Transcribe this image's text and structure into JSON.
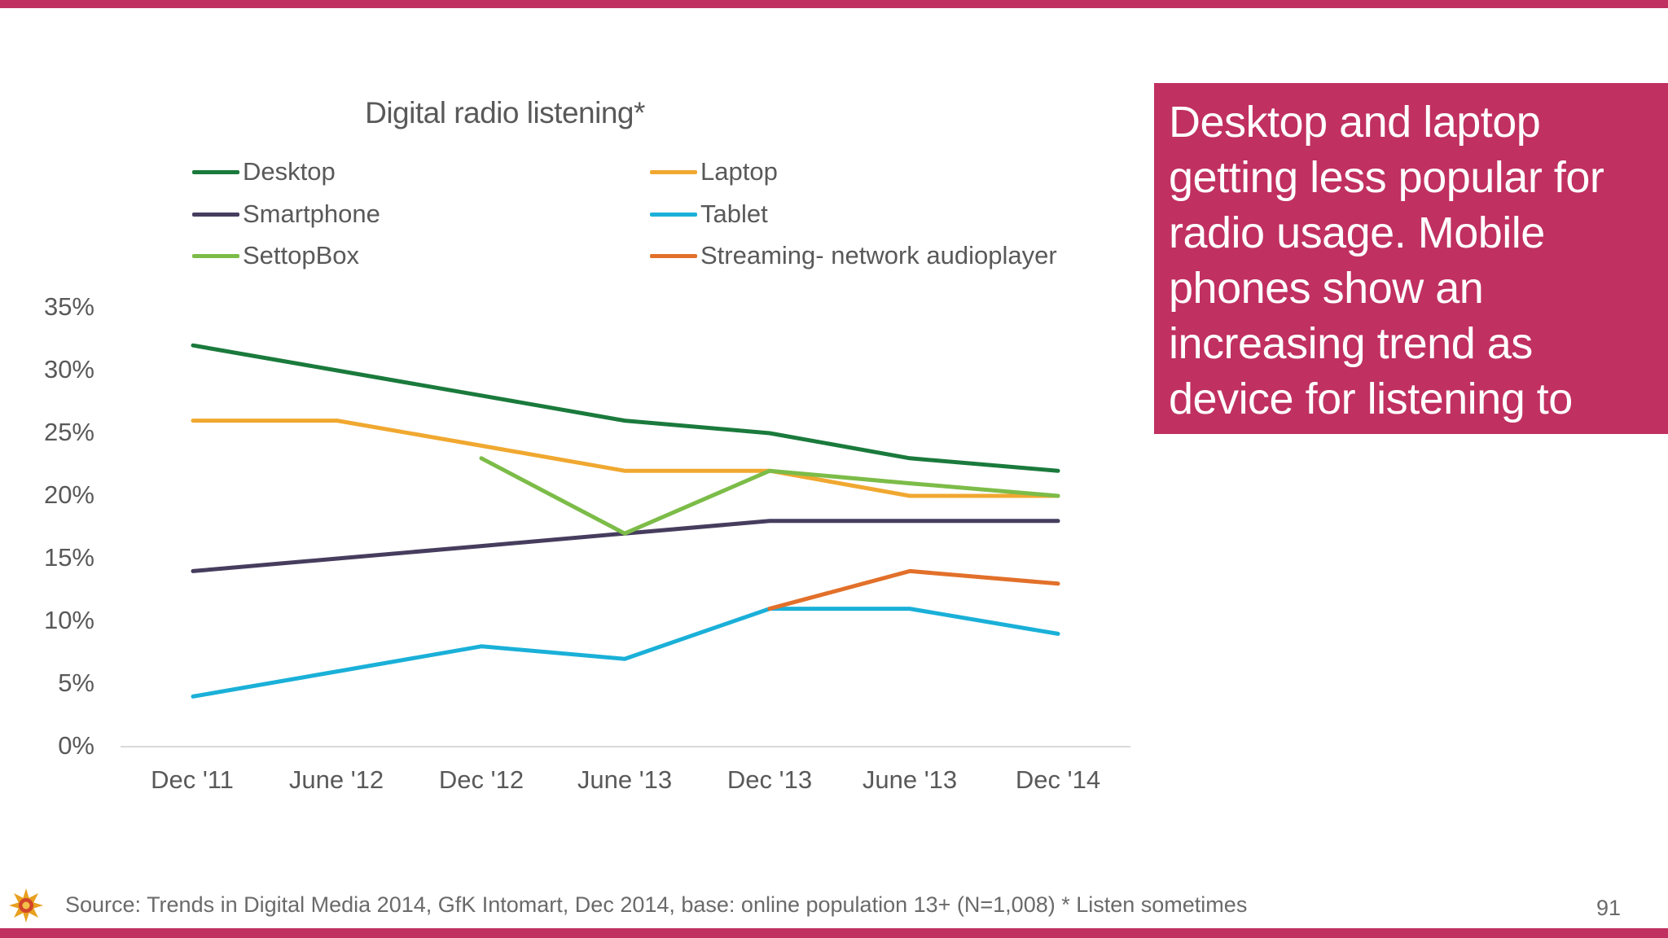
{
  "slide": {
    "callout_text": "Desktop and laptop getting less popular for radio usage. Mobile phones show an increasing trend as device for listening to digital radio",
    "source": "Source: Trends in Digital Media 2014, GfK Intomart, Dec 2014, base: online population 13+ (N=1,008) * Listen sometimes",
    "page_number": "91",
    "accent_color": "#c03060"
  },
  "chart_data": {
    "type": "line",
    "title": "Digital radio listening*",
    "categories": [
      "Dec '11",
      "June '12",
      "Dec '12",
      "June '13",
      "Dec '13",
      "June '13",
      "Dec '14"
    ],
    "y_ticks": [
      "0%",
      "5%",
      "10%",
      "15%",
      "20%",
      "25%",
      "30%",
      "35%"
    ],
    "ylim": [
      0,
      35
    ],
    "grid": false,
    "legend_position": "top",
    "series": [
      {
        "name": "Desktop",
        "color": "#1a7a3c",
        "values": [
          32,
          30,
          28,
          26,
          25,
          23,
          22
        ]
      },
      {
        "name": "Laptop",
        "color": "#f0a830",
        "values": [
          26,
          26,
          24,
          22,
          22,
          20,
          20
        ]
      },
      {
        "name": "Smartphone",
        "color": "#463d5e",
        "values": [
          14,
          15,
          16,
          17,
          18,
          18,
          18
        ]
      },
      {
        "name": "Tablet",
        "color": "#1ab0d8",
        "values": [
          4,
          6,
          8,
          7,
          11,
          11,
          9
        ]
      },
      {
        "name": "SettopBox",
        "color": "#7cbc48",
        "values": [
          null,
          null,
          23,
          17,
          22,
          21,
          20
        ]
      },
      {
        "name": "Streaming- network audioplayer",
        "color": "#e2702a",
        "values": [
          null,
          null,
          null,
          null,
          11,
          14,
          13
        ]
      }
    ]
  }
}
